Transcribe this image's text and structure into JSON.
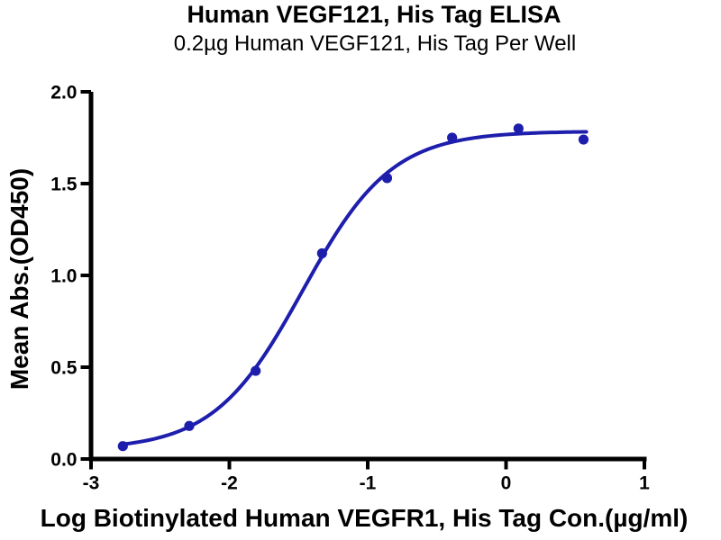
{
  "chart_data": {
    "type": "scatter",
    "title": "Human VEGF121, His Tag ELISA",
    "subtitle": "0.2µg Human VEGF121, His Tag Per Well",
    "xlabel": "Log Biotinylated Human VEGFR1, His Tag Con.(µg/ml)",
    "ylabel": "Mean Abs.(OD450)",
    "xlim": [
      -3,
      1
    ],
    "ylim": [
      0,
      2
    ],
    "x_ticks": [
      -3,
      -2,
      -1,
      0,
      1
    ],
    "x_tick_labels": [
      "-3",
      "-2",
      "-1",
      "0",
      "1"
    ],
    "y_ticks": [
      0,
      0.5,
      1,
      1.5,
      2
    ],
    "y_tick_labels": [
      "0.0",
      "0.5",
      "1.0",
      "1.5",
      "2.0"
    ],
    "grid": false,
    "legend": "none",
    "series": [
      {
        "name": "Biotinylated Human VEGFR1, His Tag",
        "marker": "circle",
        "x": [
          -2.77,
          -2.29,
          -1.81,
          -1.33,
          -0.86,
          -0.39,
          0.09,
          0.56
        ],
        "y": [
          0.07,
          0.18,
          0.48,
          1.12,
          1.53,
          1.75,
          1.8,
          1.74
        ]
      }
    ],
    "fit_curve": {
      "model": "4PL-sigmoid",
      "bottom": 0.05,
      "top": 1.785,
      "log_ec50": -1.47,
      "hill_slope": 1.35,
      "x_range": [
        -2.77,
        0.58
      ]
    },
    "colors": {
      "series": "#1e1ead",
      "axis": "#000000",
      "text": "#000000",
      "background": "#ffffff"
    }
  }
}
